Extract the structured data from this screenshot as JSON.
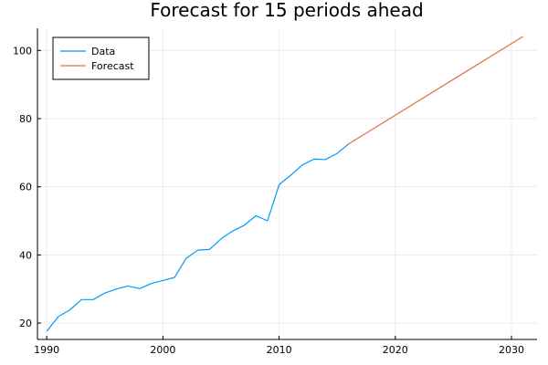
{
  "colors": {
    "data_line": "#009af9",
    "forecast_line": "#e26f46",
    "grid": "#ececec",
    "background": "#ffffff"
  },
  "chart_data": {
    "type": "line",
    "title": "Forecast for 15 periods ahead",
    "xlabel": "",
    "ylabel": "",
    "xlim": [
      1989.2,
      2032.2
    ],
    "ylim": [
      15.2,
      106.5
    ],
    "xticks": [
      1990,
      2000,
      2010,
      2020,
      2030
    ],
    "xtick_labels": [
      "1990",
      "2000",
      "2010",
      "2020",
      "2030"
    ],
    "yticks": [
      20,
      40,
      60,
      80,
      100
    ],
    "ytick_labels": [
      "20",
      "40",
      "60",
      "80",
      "100"
    ],
    "grid": true,
    "legend": "top-left",
    "series": [
      {
        "name": "Data",
        "color": "#009af9",
        "x": [
          1990,
          1991,
          1992,
          1993,
          1994,
          1995,
          1996,
          1997,
          1998,
          1999,
          2000,
          2001,
          2002,
          2003,
          2004,
          2005,
          2006,
          2007,
          2008,
          2009,
          2010,
          2011,
          2012,
          2013,
          2014,
          2015,
          2016
        ],
        "y": [
          17.6,
          21.9,
          23.9,
          26.9,
          26.9,
          28.8,
          30.0,
          30.9,
          30.1,
          31.6,
          32.5,
          33.4,
          39.0,
          41.4,
          41.6,
          44.7,
          47.0,
          48.7,
          51.5,
          50.0,
          60.6,
          63.4,
          66.4,
          68.1,
          68.0,
          69.8,
          72.6
        ]
      },
      {
        "name": "Forecast",
        "color": "#e26f46",
        "x": [
          2016,
          2031
        ],
        "y": [
          72.6,
          104.1
        ]
      }
    ]
  }
}
